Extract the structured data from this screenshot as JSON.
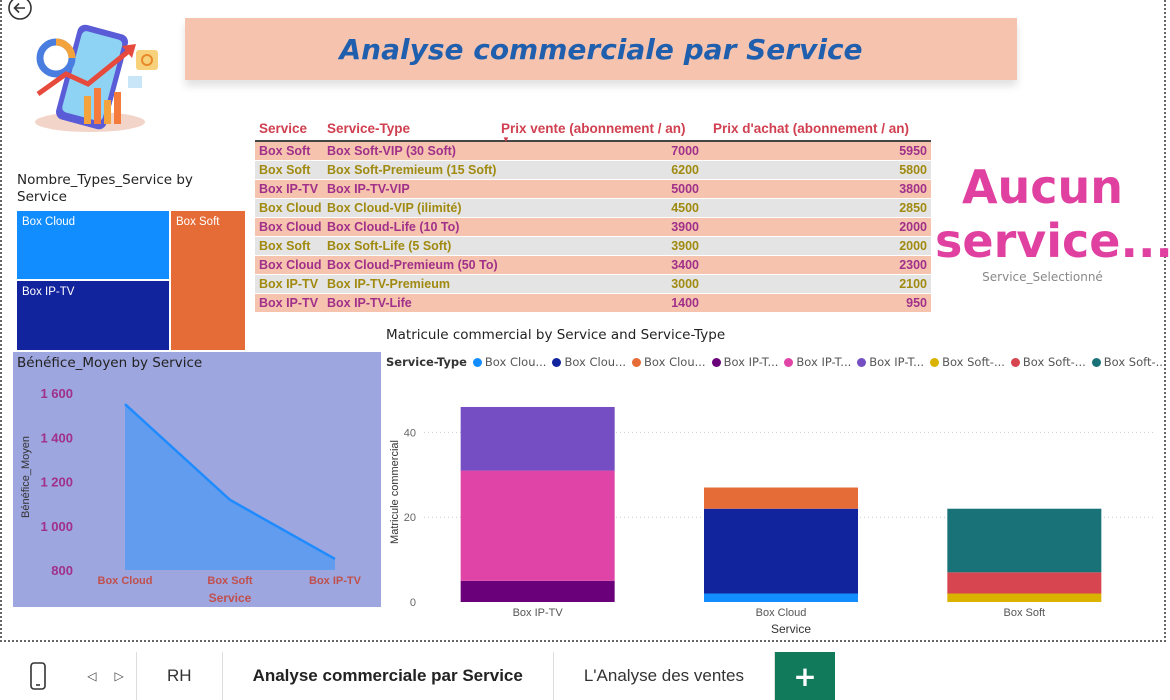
{
  "report": {
    "title": "Analyse commerciale par Service"
  },
  "table": {
    "headers": [
      "Service",
      "Service-Type",
      "Prix vente (abonnement / an)",
      "Prix d'achat (abonnement / an)"
    ],
    "rows": [
      {
        "service": "Box Soft",
        "type": "Box Soft-VIP (30 Soft)",
        "vente": "7000",
        "achat": "5950"
      },
      {
        "service": "Box Soft",
        "type": "Box Soft-Premieum (15 Soft)",
        "vente": "6200",
        "achat": "5800"
      },
      {
        "service": "Box IP-TV",
        "type": "Box IP-TV-VIP",
        "vente": "5000",
        "achat": "3800"
      },
      {
        "service": "Box Cloud",
        "type": "Box Cloud-VIP (ilimité)",
        "vente": "4500",
        "achat": "2850"
      },
      {
        "service": "Box Cloud",
        "type": "Box Cloud-Life (10 To)",
        "vente": "3900",
        "achat": "2000"
      },
      {
        "service": "Box Soft",
        "type": "Box Soft-Life (5 Soft)",
        "vente": "3900",
        "achat": "2000"
      },
      {
        "service": "Box Cloud",
        "type": "Box Cloud-Premieum (50 To)",
        "vente": "3400",
        "achat": "2300"
      },
      {
        "service": "Box IP-TV",
        "type": "Box IP-TV-Premieum",
        "vente": "3000",
        "achat": "2100"
      },
      {
        "service": "Box IP-TV",
        "type": "Box IP-TV-Life",
        "vente": "1400",
        "achat": "950"
      }
    ],
    "row_colors": [
      "#f6c4ae",
      "#e4e4e4"
    ],
    "text_colors": [
      "#a0308a",
      "#a08a10"
    ]
  },
  "card": {
    "value": "Aucun service...",
    "label": "Service_Selectionné"
  },
  "treemap": {
    "title": "Nombre_Types_Service by Service",
    "cells": [
      {
        "label": "Box Cloud",
        "color": "#118dff"
      },
      {
        "label": "Box IP-TV",
        "color": "#12239e"
      },
      {
        "label": "Box Soft",
        "color": "#e66c37"
      }
    ]
  },
  "tabs": {
    "items": [
      "RH",
      "Analyse commerciale par Service",
      "L'Analyse des ventes"
    ],
    "active": "Analyse commerciale par Service",
    "add_label": "+"
  },
  "chart_data": [
    {
      "type": "area",
      "title": "Bénéfice_Moyen by Service",
      "xlabel": "Service",
      "ylabel": "Bénéfice_Moyen",
      "categories": [
        "Box Cloud",
        "Box Soft",
        "Box IP-TV"
      ],
      "values": [
        1550,
        1117,
        850
      ],
      "ylim": [
        800,
        1650
      ],
      "yticks": [
        800,
        1000,
        1200,
        1400,
        1600
      ],
      "ytick_labels": [
        "800",
        "1 000",
        "1 200",
        "1 400",
        "1 600"
      ],
      "colors": {
        "background": "#9da6de",
        "fill": "#5b9bf0",
        "line": "#1f8bff",
        "tick": "#a0308a",
        "xtick": "#c0504d"
      }
    },
    {
      "type": "bar",
      "stacked": true,
      "title": "Matricule commercial by Service and Service-Type",
      "xlabel": "Service",
      "ylabel": "Matricule commercial",
      "legend_title": "Service-Type",
      "legend_labels": [
        "Box Clou...",
        "Box Clou...",
        "Box Clou...",
        "Box IP-T...",
        "Box IP-T...",
        "Box IP-T...",
        "Box Soft-...",
        "Box Soft-...",
        "Box Soft-..."
      ],
      "categories": [
        "Box IP-TV",
        "Box Cloud",
        "Box Soft"
      ],
      "yticks": [
        0,
        20,
        40
      ],
      "ylim": [
        0,
        50
      ],
      "grid": true,
      "series": [
        {
          "color": "#118dff",
          "values": [
            0,
            2,
            0
          ]
        },
        {
          "color": "#12239e",
          "values": [
            0,
            20,
            0
          ]
        },
        {
          "color": "#e66c37",
          "values": [
            0,
            5,
            0
          ]
        },
        {
          "color": "#6b007b",
          "values": [
            5,
            0,
            0
          ]
        },
        {
          "color": "#e044a7",
          "values": [
            26,
            0,
            0
          ]
        },
        {
          "color": "#744ec2",
          "values": [
            15,
            0,
            0
          ]
        },
        {
          "color": "#d9b300",
          "values": [
            0,
            0,
            2
          ]
        },
        {
          "color": "#d64550",
          "values": [
            0,
            0,
            5
          ]
        },
        {
          "color": "#197278",
          "values": [
            0,
            0,
            15
          ]
        }
      ]
    }
  ]
}
